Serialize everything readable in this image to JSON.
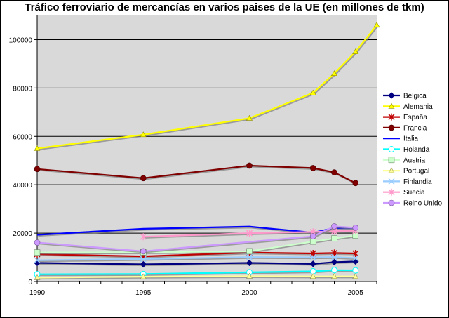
{
  "chart_data": {
    "type": "line",
    "title": "Tráfico ferroviario de mercancías en varios paises de la UE (en millones de tkm)",
    "xlabel": "",
    "ylabel": "",
    "xlim": [
      1990,
      2006
    ],
    "ylim": [
      0,
      110000
    ],
    "x_ticks": [
      1990,
      1995,
      2000,
      2005
    ],
    "y_ticks": [
      0,
      20000,
      40000,
      60000,
      80000,
      100000
    ],
    "grid": "horizontal",
    "plot_background": "#d9d9d9",
    "legend_position": "right",
    "series": [
      {
        "name": "Bélgica",
        "color": "#000080",
        "marker": "diamond",
        "x": [
          1990,
          1995,
          2000,
          2003,
          2004,
          2005
        ],
        "y": [
          7700,
          7100,
          7700,
          7300,
          8000,
          8300
        ]
      },
      {
        "name": "Alemania",
        "color": "#ffff00",
        "marker": "triangle",
        "x": [
          1990,
          1995,
          2000,
          2003,
          2004,
          2005,
          2006
        ],
        "y": [
          55000,
          60700,
          67500,
          78000,
          86000,
          95000,
          106000
        ]
      },
      {
        "name": "España",
        "color": "#c00000",
        "marker": "star",
        "x": [
          1990,
          1995,
          2000,
          2003,
          2004,
          2005
        ],
        "y": [
          11300,
          10400,
          12000,
          11600,
          11800,
          11600
        ]
      },
      {
        "name": "Francia",
        "color": "#800000",
        "marker": "circle",
        "x": [
          1990,
          1995,
          2000,
          2003,
          2004,
          2005
        ],
        "y": [
          46500,
          42700,
          47900,
          46900,
          45100,
          40700
        ]
      },
      {
        "name": "Italia",
        "color": "#0000ff",
        "marker": "none",
        "x": [
          1990,
          1995,
          2000,
          2003,
          2004,
          2005
        ],
        "y": [
          19300,
          21800,
          22700,
          20200,
          22100,
          22000
        ]
      },
      {
        "name": "Holanda",
        "color": "#00ffff",
        "marker": "circle-light",
        "x": [
          1990,
          1995,
          2000,
          2003,
          2004,
          2005
        ],
        "y": [
          3000,
          3100,
          3800,
          4200,
          4700,
          4600
        ]
      },
      {
        "name": "Austria",
        "color": "#ccffcc",
        "marker": "square",
        "x": [
          1990,
          1995,
          2000,
          2003,
          2004,
          2005
        ],
        "y": [
          12000,
          12100,
          12500,
          16500,
          17800,
          19000
        ]
      },
      {
        "name": "Portugal",
        "color": "#ffff99",
        "marker": "triangle",
        "x": [
          1990,
          1995,
          2000,
          2003,
          2004,
          2005
        ],
        "y": [
          1600,
          2000,
          2200,
          2100,
          2100,
          2100
        ]
      },
      {
        "name": "Finlandia",
        "color": "#99ccff",
        "marker": "x",
        "x": [
          1990,
          1995,
          2000,
          2003,
          2004,
          2005
        ],
        "y": [
          8800,
          9300,
          10100,
          10000,
          10100,
          9700
        ]
      },
      {
        "name": "Suecia",
        "color": "#ff99cc",
        "marker": "star",
        "x": [
          1995,
          2000,
          2003,
          2004,
          2005
        ],
        "y": [
          18500,
          20000,
          20500,
          20800,
          21000
        ]
      },
      {
        "name": "Reino Unido",
        "color": "#cc99ff",
        "marker": "circle",
        "x": [
          1990,
          1995,
          2003,
          2004,
          2005
        ],
        "y": [
          16100,
          12500,
          18700,
          22800,
          22200
        ]
      }
    ]
  }
}
